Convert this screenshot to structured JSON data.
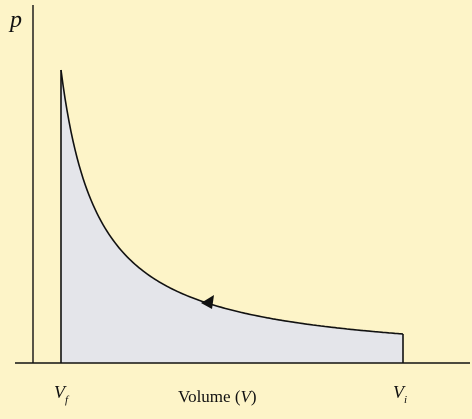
{
  "y_label": "p",
  "x_label": {
    "before": "Volume (",
    "symbol": "V",
    "after": ")"
  },
  "v_final": {
    "symbol": "V",
    "subscript": "f"
  },
  "v_initial": {
    "symbol": "V",
    "subscript": "i"
  }
}
